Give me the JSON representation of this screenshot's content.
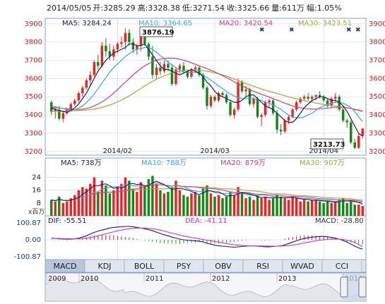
{
  "header": {
    "date": "2014/05/05",
    "open_label": "开:",
    "open": "3285.29",
    "high_label": "高:",
    "high": "3328.38",
    "low_label": "低:",
    "low": "3271.54",
    "close_label": "收:",
    "close": "3325.66",
    "volume_label": "量:",
    "volume": "611万",
    "change_label": "幅:",
    "change": "1.05%"
  },
  "colors": {
    "up": "#ee2222",
    "down": "#118811",
    "ma5": "#1a1a66",
    "ma10": "#33aadd",
    "ma20": "#ee3377",
    "ma30": "#99aa33",
    "grid": "#c9d4e6",
    "frame": "#8aa0c0"
  },
  "price_panel": {
    "legend": [
      {
        "label": "MA5: 3284.24",
        "color": "#1a1a66"
      },
      {
        "label": "MA10: 3364.65",
        "color": "#33aadd"
      },
      {
        "label": "MA20: 3420.54",
        "color": "#ee3377"
      },
      {
        "label": "MA30: 3423.51",
        "color": "#99aa33"
      }
    ],
    "yticks": [
      "3900",
      "3800",
      "3700",
      "3600",
      "3500",
      "3400",
      "3300",
      "3200"
    ],
    "xticks": [
      "2014/02",
      "2014/03",
      "2014/04"
    ],
    "high_note": "3876.19",
    "low_note": "3213.73"
  },
  "volume_panel": {
    "legend": [
      {
        "label": "MA5: 738万",
        "color": "#1a1a66"
      },
      {
        "label": "MA10: 788万",
        "color": "#33aadd"
      },
      {
        "label": "MA20: 879万",
        "color": "#ee3377"
      },
      {
        "label": "MA30: 907万",
        "color": "#99aa33"
      }
    ],
    "yticks": [
      "24",
      "16",
      "8"
    ],
    "unit": "x百万"
  },
  "macd_panel": {
    "dif_label": "DIF: -55.51",
    "dea_label": "DEA: -41.11",
    "macd_label": "MACD: -28.80",
    "yticks": [
      "100.87",
      "0.00",
      "-100.87"
    ]
  },
  "tabs": [
    "MACD",
    "KDJ",
    "BOLL",
    "PSY",
    "OBV",
    "RSI",
    "WVAD",
    "CCI"
  ],
  "active_tab": "MACD",
  "navigator": {
    "years": [
      "2009",
      "2010",
      "2011",
      "2012",
      "2013",
      "2014"
    ]
  },
  "chart_data": {
    "type": "candlestick",
    "note_high": 3876.19,
    "note_low": 3213.73,
    "ylim": [
      3180,
      3930
    ],
    "last_bar": {
      "date": "2014/05/05",
      "open": 3285.29,
      "high": 3328.38,
      "low": 3271.54,
      "close": 3325.66,
      "change_pct": 1.05
    },
    "ohlc": [
      [
        3470,
        3480,
        3400,
        3420
      ],
      [
        3420,
        3440,
        3380,
        3430
      ],
      [
        3430,
        3450,
        3370,
        3380
      ],
      [
        3380,
        3420,
        3360,
        3410
      ],
      [
        3410,
        3440,
        3400,
        3430
      ],
      [
        3430,
        3470,
        3420,
        3460
      ],
      [
        3460,
        3490,
        3450,
        3480
      ],
      [
        3480,
        3530,
        3470,
        3520
      ],
      [
        3520,
        3560,
        3500,
        3550
      ],
      [
        3550,
        3600,
        3540,
        3590
      ],
      [
        3590,
        3640,
        3560,
        3620
      ],
      [
        3620,
        3700,
        3610,
        3690
      ],
      [
        3690,
        3730,
        3650,
        3670
      ],
      [
        3670,
        3800,
        3660,
        3780
      ],
      [
        3780,
        3820,
        3720,
        3750
      ],
      [
        3750,
        3790,
        3700,
        3720
      ],
      [
        3720,
        3780,
        3700,
        3760
      ],
      [
        3760,
        3800,
        3740,
        3790
      ],
      [
        3790,
        3830,
        3770,
        3800
      ],
      [
        3800,
        3876,
        3760,
        3850
      ],
      [
        3850,
        3870,
        3780,
        3800
      ],
      [
        3800,
        3820,
        3740,
        3760
      ],
      [
        3760,
        3790,
        3730,
        3780
      ],
      [
        3780,
        3840,
        3750,
        3830
      ],
      [
        3830,
        3845,
        3780,
        3790
      ],
      [
        3790,
        3800,
        3700,
        3720
      ],
      [
        3720,
        3780,
        3600,
        3620
      ],
      [
        3620,
        3680,
        3600,
        3660
      ],
      [
        3660,
        3690,
        3620,
        3640
      ],
      [
        3640,
        3700,
        3630,
        3680
      ],
      [
        3680,
        3700,
        3640,
        3660
      ],
      [
        3660,
        3680,
        3560,
        3570
      ],
      [
        3570,
        3660,
        3560,
        3650
      ],
      [
        3650,
        3680,
        3630,
        3670
      ],
      [
        3670,
        3690,
        3630,
        3640
      ],
      [
        3640,
        3650,
        3600,
        3610
      ],
      [
        3610,
        3660,
        3600,
        3650
      ],
      [
        3650,
        3670,
        3630,
        3660
      ],
      [
        3660,
        3670,
        3610,
        3620
      ],
      [
        3620,
        3630,
        3540,
        3550
      ],
      [
        3550,
        3560,
        3430,
        3450
      ],
      [
        3450,
        3510,
        3440,
        3500
      ],
      [
        3500,
        3510,
        3470,
        3480
      ],
      [
        3480,
        3530,
        3470,
        3520
      ],
      [
        3520,
        3530,
        3500,
        3510
      ],
      [
        3510,
        3520,
        3460,
        3470
      ],
      [
        3470,
        3480,
        3390,
        3400
      ],
      [
        3400,
        3440,
        3380,
        3430
      ],
      [
        3430,
        3600,
        3420,
        3580
      ],
      [
        3580,
        3590,
        3520,
        3530
      ],
      [
        3530,
        3560,
        3500,
        3540
      ],
      [
        3540,
        3550,
        3450,
        3460
      ],
      [
        3460,
        3500,
        3440,
        3490
      ],
      [
        3490,
        3500,
        3380,
        3390
      ],
      [
        3390,
        3410,
        3340,
        3400
      ],
      [
        3400,
        3480,
        3390,
        3470
      ],
      [
        3470,
        3490,
        3440,
        3480
      ],
      [
        3480,
        3490,
        3400,
        3410
      ],
      [
        3410,
        3430,
        3300,
        3320
      ],
      [
        3320,
        3350,
        3290,
        3310
      ],
      [
        3310,
        3380,
        3300,
        3370
      ],
      [
        3370,
        3400,
        3350,
        3390
      ],
      [
        3390,
        3440,
        3380,
        3430
      ],
      [
        3430,
        3480,
        3420,
        3470
      ],
      [
        3470,
        3500,
        3460,
        3490
      ],
      [
        3490,
        3510,
        3480,
        3500
      ],
      [
        3500,
        3520,
        3480,
        3490
      ],
      [
        3490,
        3510,
        3470,
        3500
      ],
      [
        3500,
        3510,
        3480,
        3510
      ],
      [
        3510,
        3530,
        3490,
        3500
      ],
      [
        3500,
        3510,
        3470,
        3480
      ],
      [
        3480,
        3490,
        3440,
        3450
      ],
      [
        3450,
        3500,
        3440,
        3490
      ],
      [
        3490,
        3520,
        3470,
        3500
      ],
      [
        3500,
        3510,
        3420,
        3430
      ],
      [
        3430,
        3440,
        3360,
        3370
      ],
      [
        3370,
        3380,
        3330,
        3360
      ],
      [
        3360,
        3370,
        3240,
        3250
      ],
      [
        3250,
        3270,
        3213.73,
        3220
      ],
      [
        3220,
        3300,
        3215,
        3285
      ],
      [
        3285.29,
        3328.38,
        3271.54,
        3325.66
      ]
    ],
    "volume": [
      10,
      9,
      12,
      8,
      9,
      11,
      13,
      16,
      18,
      17,
      20,
      24,
      15,
      22,
      19,
      14,
      16,
      18,
      20,
      24,
      22,
      17,
      15,
      21,
      19,
      23,
      25,
      20,
      16,
      14,
      15,
      18,
      22,
      16,
      13,
      12,
      14,
      15,
      13,
      17,
      19,
      14,
      12,
      13,
      11,
      12,
      15,
      13,
      18,
      14,
      11,
      12,
      10,
      13,
      11,
      12,
      10,
      11,
      13,
      12,
      11,
      10,
      12,
      11,
      9,
      10,
      9,
      10,
      10,
      9,
      8,
      9,
      8,
      9,
      10,
      11,
      8,
      9,
      7,
      7,
      6.1
    ],
    "ma_price": {
      "ma5": [
        3440,
        3430,
        3425,
        3420,
        3415,
        3425,
        3440,
        3460,
        3490,
        3520,
        3560,
        3600,
        3640,
        3670,
        3700,
        3720,
        3740,
        3750,
        3760,
        3770,
        3790,
        3790,
        3780,
        3780,
        3790,
        3760,
        3730,
        3700,
        3670,
        3650,
        3650,
        3640,
        3630,
        3620,
        3630,
        3640,
        3650,
        3640,
        3630,
        3610,
        3580,
        3560,
        3530,
        3510,
        3500,
        3490,
        3480,
        3470,
        3470,
        3480,
        3500,
        3510,
        3510,
        3490,
        3470,
        3450,
        3440,
        3430,
        3410,
        3390,
        3370,
        3360,
        3360,
        3380,
        3410,
        3440,
        3460,
        3480,
        3490,
        3500,
        3500,
        3490,
        3480,
        3480,
        3470,
        3450,
        3420,
        3380,
        3340,
        3300,
        3284
      ],
      "ma10": [
        3450,
        3445,
        3440,
        3435,
        3430,
        3428,
        3430,
        3438,
        3450,
        3468,
        3490,
        3515,
        3545,
        3575,
        3605,
        3635,
        3660,
        3680,
        3700,
        3720,
        3735,
        3750,
        3760,
        3765,
        3770,
        3770,
        3760,
        3745,
        3725,
        3710,
        3690,
        3675,
        3660,
        3645,
        3635,
        3635,
        3635,
        3635,
        3630,
        3620,
        3605,
        3590,
        3575,
        3560,
        3545,
        3530,
        3515,
        3505,
        3495,
        3490,
        3490,
        3490,
        3490,
        3485,
        3480,
        3470,
        3465,
        3455,
        3445,
        3430,
        3415,
        3400,
        3390,
        3385,
        3385,
        3390,
        3400,
        3410,
        3425,
        3440,
        3450,
        3460,
        3465,
        3468,
        3468,
        3465,
        3455,
        3440,
        3420,
        3390,
        3364
      ],
      "ma20": [
        3440,
        3440,
        3438,
        3436,
        3434,
        3432,
        3430,
        3430,
        3432,
        3436,
        3442,
        3450,
        3460,
        3472,
        3486,
        3502,
        3520,
        3540,
        3560,
        3580,
        3600,
        3620,
        3638,
        3655,
        3670,
        3682,
        3692,
        3700,
        3706,
        3710,
        3712,
        3712,
        3710,
        3706,
        3700,
        3694,
        3686,
        3678,
        3670,
        3662,
        3654,
        3645,
        3636,
        3626,
        3616,
        3605,
        3594,
        3582,
        3570,
        3560,
        3550,
        3540,
        3530,
        3522,
        3514,
        3506,
        3498,
        3490,
        3482,
        3474,
        3465,
        3458,
        3450,
        3444,
        3440,
        3436,
        3434,
        3433,
        3433,
        3434,
        3436,
        3438,
        3440,
        3442,
        3443,
        3442,
        3440,
        3436,
        3430,
        3425,
        3420
      ],
      "ma30": [
        3420,
        3420,
        3420,
        3421,
        3422,
        3423,
        3424,
        3425,
        3426,
        3428,
        3430,
        3433,
        3437,
        3442,
        3448,
        3455,
        3463,
        3472,
        3482,
        3493,
        3505,
        3518,
        3532,
        3546,
        3560,
        3573,
        3585,
        3596,
        3606,
        3615,
        3623,
        3630,
        3636,
        3640,
        3643,
        3645,
        3646,
        3646,
        3645,
        3643,
        3640,
        3636,
        3631,
        3626,
        3620,
        3613,
        3605,
        3597,
        3589,
        3581,
        3573,
        3565,
        3557,
        3550,
        3543,
        3536,
        3530,
        3524,
        3518,
        3512,
        3506,
        3500,
        3494,
        3489,
        3484,
        3479,
        3474,
        3470,
        3466,
        3462,
        3458,
        3455,
        3452,
        3449,
        3446,
        3443,
        3440,
        3436,
        3432,
        3428,
        3423
      ]
    },
    "macd": {
      "dif": [
        10,
        8,
        6,
        5,
        4,
        4,
        6,
        10,
        16,
        24,
        34,
        44,
        52,
        58,
        64,
        70,
        74,
        76,
        78,
        80,
        80,
        78,
        74,
        70,
        66,
        60,
        54,
        46,
        38,
        30,
        24,
        16,
        10,
        4,
        0,
        -2,
        -4,
        -6,
        -8,
        -12,
        -20,
        -26,
        -32,
        -36,
        -38,
        -40,
        -42,
        -44,
        -42,
        -40,
        -38,
        -36,
        -36,
        -38,
        -40,
        -42,
        -42,
        -40,
        -38,
        -36,
        -30,
        -22,
        -14,
        -6,
        2,
        8,
        12,
        16,
        18,
        20,
        20,
        18,
        14,
        10,
        4,
        -4,
        -14,
        -26,
        -38,
        -48,
        -55.5
      ],
      "dea": [
        8,
        8,
        8,
        7,
        7,
        6,
        6,
        7,
        8,
        10,
        14,
        18,
        24,
        30,
        36,
        42,
        48,
        54,
        58,
        62,
        66,
        68,
        70,
        70,
        70,
        68,
        66,
        62,
        58,
        52,
        46,
        40,
        34,
        28,
        22,
        18,
        14,
        10,
        6,
        2,
        -2,
        -6,
        -10,
        -14,
        -18,
        -22,
        -26,
        -30,
        -32,
        -34,
        -35,
        -36,
        -36,
        -36,
        -37,
        -37,
        -38,
        -38,
        -38,
        -37,
        -36,
        -34,
        -32,
        -28,
        -24,
        -18,
        -14,
        -10,
        -6,
        -2,
        0,
        2,
        4,
        5,
        4,
        2,
        -2,
        -8,
        -16,
        -28,
        -41.1
      ],
      "hist": [
        2,
        0,
        -2,
        -2,
        -3,
        -2,
        0,
        3,
        8,
        14,
        20,
        26,
        28,
        28,
        28,
        28,
        26,
        22,
        20,
        18,
        14,
        10,
        4,
        0,
        -4,
        -8,
        -12,
        -16,
        -20,
        -22,
        -22,
        -24,
        -24,
        -24,
        -22,
        -20,
        -18,
        -16,
        -14,
        -14,
        -18,
        -20,
        -22,
        -22,
        -20,
        -18,
        -16,
        -14,
        -10,
        -6,
        -3,
        0,
        0,
        -2,
        -3,
        -5,
        -4,
        -2,
        0,
        1,
        6,
        12,
        18,
        22,
        26,
        26,
        26,
        26,
        24,
        22,
        20,
        16,
        10,
        5,
        0,
        -6,
        -12,
        -18,
        -22,
        -24,
        -28.8
      ]
    }
  }
}
